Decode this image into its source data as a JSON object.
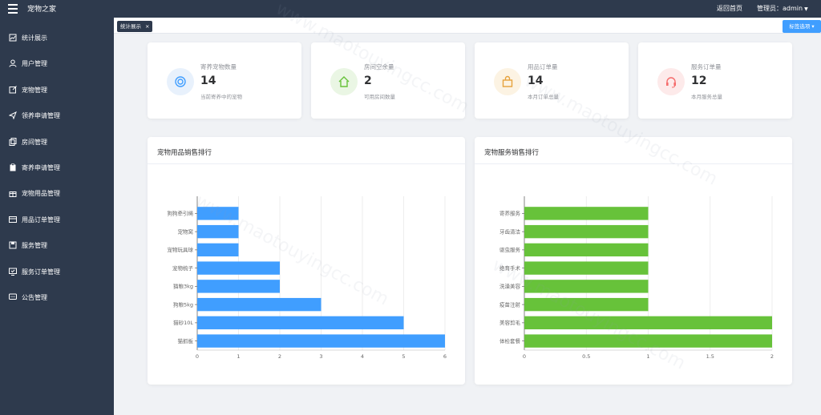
{
  "header": {
    "app_title": "宠物之家",
    "home_link": "返回首页",
    "admin_label": "管理员：admin"
  },
  "sidebar": {
    "items": [
      {
        "label": "统计展示",
        "icon": "chart-icon"
      },
      {
        "label": "用户管理",
        "icon": "user-icon"
      },
      {
        "label": "宠物管理",
        "icon": "edit-box-icon"
      },
      {
        "label": "领养申请管理",
        "icon": "send-icon"
      },
      {
        "label": "房间管理",
        "icon": "copy-icon"
      },
      {
        "label": "寄养申请管理",
        "icon": "clipboard-icon"
      },
      {
        "label": "宠物用品管理",
        "icon": "gift-icon"
      },
      {
        "label": "用品订单管理",
        "icon": "card-icon"
      },
      {
        "label": "服务管理",
        "icon": "save-icon"
      },
      {
        "label": "服务订单管理",
        "icon": "monitor-icon"
      },
      {
        "label": "公告管理",
        "icon": "message-icon"
      }
    ]
  },
  "tabs": {
    "active_tab": "统计展示",
    "close_glyph": "×",
    "options_label": "标签选项"
  },
  "stats": [
    {
      "label": "寄养宠物数量",
      "value": "14",
      "desc": "当前寄养中的宠物",
      "icon": "lifebuoy-icon",
      "color": "#409eff",
      "bg": "#e8f1fc"
    },
    {
      "label": "房间空余量",
      "value": "2",
      "desc": "可用房间数量",
      "icon": "house-icon",
      "color": "#67c23a",
      "bg": "#eaf6e4"
    },
    {
      "label": "用品订单量",
      "value": "14",
      "desc": "本月订单总量",
      "icon": "bag-icon",
      "color": "#e6a23c",
      "bg": "#fcf3e3"
    },
    {
      "label": "服务订单量",
      "value": "12",
      "desc": "本月服务总量",
      "icon": "headset-icon",
      "color": "#f56c6c",
      "bg": "#fdeaea"
    }
  ],
  "charts": {
    "products_title": "宠物用品销售排行",
    "services_title": "宠物服务销售排行"
  },
  "chart_data": [
    {
      "type": "bar",
      "orientation": "horizontal",
      "title": "宠物用品销售排行",
      "categories": [
        "狗狗牵引绳",
        "宠物窝",
        "宠物玩具球",
        "宠物梳子",
        "猫粮3kg",
        "狗粮5kg",
        "猫砂10L",
        "猫抓板"
      ],
      "values": [
        1,
        1,
        1,
        2,
        2,
        3,
        5,
        6
      ],
      "xlim": [
        0,
        6
      ],
      "xticks": [
        "0",
        "1",
        "2",
        "3",
        "4",
        "5",
        "6"
      ],
      "color": "#409eff",
      "grid": "vertical"
    },
    {
      "type": "bar",
      "orientation": "horizontal",
      "title": "宠物服务销售排行",
      "categories": [
        "寄养服务",
        "牙齿清洁",
        "驱虫服务",
        "绝育手术",
        "洗澡美容",
        "疫苗注射",
        "美容剪毛",
        "体检套餐"
      ],
      "values": [
        1,
        1,
        1,
        1,
        1,
        1,
        2,
        2
      ],
      "xlim": [
        0,
        2
      ],
      "xticks": [
        "0",
        "0.5",
        "1",
        "1.5",
        "2"
      ],
      "color": "#67c23a",
      "grid": "vertical"
    }
  ]
}
